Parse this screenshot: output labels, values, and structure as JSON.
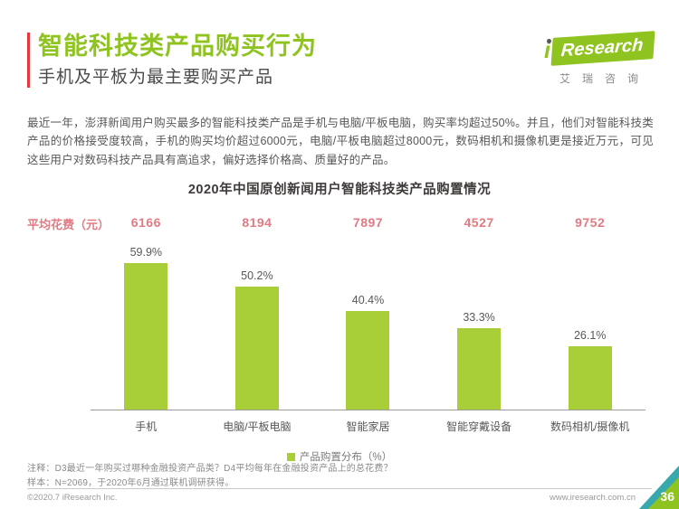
{
  "header": {
    "title": "智能科技类产品购买行为",
    "subtitle": "手机及平板为最主要购买产品",
    "logo": {
      "i": "i",
      "wordmark": "Research",
      "chinese_name": "艾瑞咨询"
    }
  },
  "intro": "最近一年，澎湃新闻用户购买最多的智能科技类产品是手机与电脑/平板电脑，购买率均超过50%。并且，他们对智能科技类产品的价格接受度较高，手机的购买均价超过6000元，电脑/平板电脑超过8000元，数码相机和摄像机更是接近万元，可见这些用户对数码科技产品具有高追求，偏好选择价格高、质量好的产品。",
  "chart_data": {
    "type": "bar",
    "title": "2020年中国原创新闻用户智能科技类产品购置情况",
    "categories": [
      "手机",
      "电脑/平板电脑",
      "智能家居",
      "智能穿戴设备",
      "数码相机/摄像机"
    ],
    "values": [
      59.9,
      50.2,
      40.4,
      33.3,
      26.1
    ],
    "value_labels": [
      "59.9%",
      "50.2%",
      "40.4%",
      "33.3%",
      "26.1%"
    ],
    "avg_spend_label": "平均花费（元）",
    "avg_spend_values": [
      "6166",
      "8194",
      "7897",
      "4527",
      "9752"
    ],
    "legend": "产品购置分布（%）",
    "legend_position": "bottom",
    "ylim": [
      0,
      65
    ],
    "grid": false,
    "bar_color": "#a9cf38"
  },
  "notes": {
    "line1": "注释：D3最近一年购买过哪种金融投资产品类？D4平均每年在金融投资产品上的总花费？",
    "line2": "样本：N=2069，于2020年6月通过联机调研获得。"
  },
  "footer": {
    "copyright": "©2020.7 iResearch Inc.",
    "website": "www.iresearch.com.cn",
    "page_number": "36"
  },
  "colors": {
    "brand_green": "#8fc31f",
    "bar_green": "#a9cf38",
    "rose": "#e17a82",
    "accent_red": "#e8383d",
    "teal": "#38a8ad",
    "text_dark": "#3e3a39",
    "text_gray": "#595757"
  }
}
